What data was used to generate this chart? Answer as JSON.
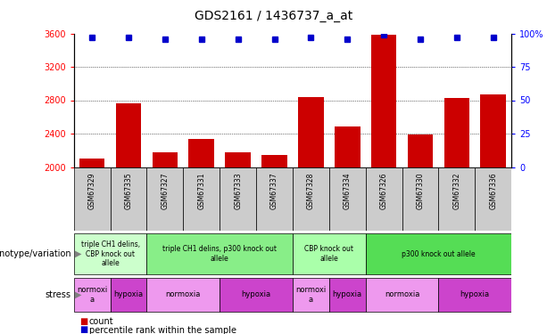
{
  "title": "GDS2161 / 1436737_a_at",
  "samples": [
    "GSM67329",
    "GSM67335",
    "GSM67327",
    "GSM67331",
    "GSM67333",
    "GSM67337",
    "GSM67328",
    "GSM67334",
    "GSM67326",
    "GSM67330",
    "GSM67332",
    "GSM67336"
  ],
  "bar_values": [
    2100,
    2760,
    2180,
    2340,
    2175,
    2145,
    2840,
    2490,
    3580,
    2390,
    2830,
    2870
  ],
  "percentile_values": [
    97,
    97,
    96,
    96,
    96,
    96,
    97,
    96,
    99,
    96,
    97,
    97
  ],
  "ylim_left": [
    2000,
    3600
  ],
  "ylim_right": [
    0,
    100
  ],
  "yticks_left": [
    2000,
    2400,
    2800,
    3200,
    3600
  ],
  "yticks_right": [
    0,
    25,
    50,
    75,
    100
  ],
  "bar_color": "#cc0000",
  "dot_color": "#0000cc",
  "genotype_groups": [
    {
      "label": "triple CH1 delins,\nCBP knock out\nallele",
      "start": 0,
      "end": 2,
      "color": "#ccffcc"
    },
    {
      "label": "triple CH1 delins, p300 knock out\nallele",
      "start": 2,
      "end": 6,
      "color": "#88ee88"
    },
    {
      "label": "CBP knock out\nallele",
      "start": 6,
      "end": 8,
      "color": "#aaffaa"
    },
    {
      "label": "p300 knock out allele",
      "start": 8,
      "end": 12,
      "color": "#55dd55"
    }
  ],
  "stress_groups": [
    {
      "label": "normoxi\na",
      "start": 0,
      "end": 1,
      "color": "#ee99ee"
    },
    {
      "label": "hypoxia",
      "start": 1,
      "end": 2,
      "color": "#cc44cc"
    },
    {
      "label": "normoxia",
      "start": 2,
      "end": 4,
      "color": "#ee99ee"
    },
    {
      "label": "hypoxia",
      "start": 4,
      "end": 6,
      "color": "#cc44cc"
    },
    {
      "label": "normoxi\na",
      "start": 6,
      "end": 7,
      "color": "#ee99ee"
    },
    {
      "label": "hypoxia",
      "start": 7,
      "end": 8,
      "color": "#cc44cc"
    },
    {
      "label": "normoxia",
      "start": 8,
      "end": 10,
      "color": "#ee99ee"
    },
    {
      "label": "hypoxia",
      "start": 10,
      "end": 12,
      "color": "#cc44cc"
    }
  ],
  "legend_items": [
    {
      "color": "#cc0000",
      "label": "count"
    },
    {
      "color": "#0000cc",
      "label": "percentile rank within the sample"
    }
  ],
  "right_axis_label": "100%",
  "sample_bg_color": "#cccccc",
  "chart_bg_color": "#ffffff"
}
